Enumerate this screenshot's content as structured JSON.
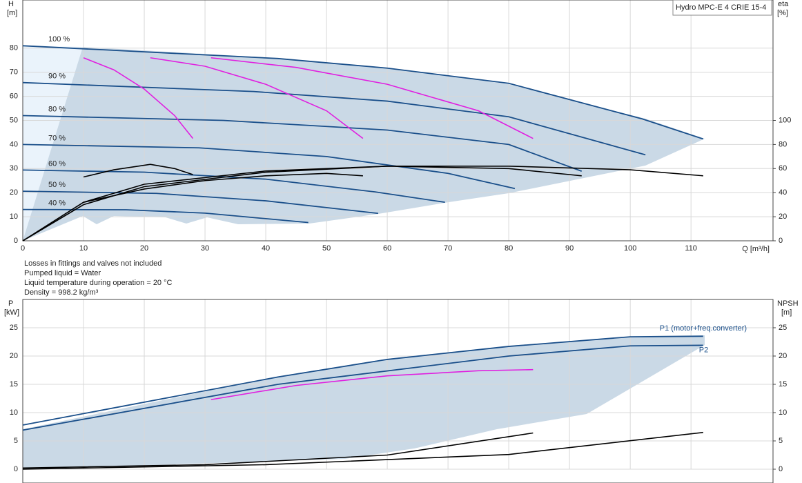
{
  "chart_data": [
    {
      "type": "line",
      "title": "Hydro MPC-E 4 CRIE 15-4",
      "y_label": "H",
      "y_unit": "[m]",
      "y2_label": "eta",
      "y2_unit": "[%]",
      "x_label": "Q [m³/h]",
      "xlim": [
        0,
        123.5
      ],
      "xticks": [
        0,
        10,
        20,
        30,
        40,
        50,
        60,
        70,
        80,
        90,
        100,
        110
      ],
      "ylim": [
        0,
        100
      ],
      "yticks": [
        0,
        10,
        20,
        30,
        40,
        50,
        60,
        70,
        80
      ],
      "y2lim": [
        0,
        200
      ],
      "y2ticks": [
        0,
        20,
        40,
        60,
        80,
        100
      ],
      "grid": true,
      "series": [
        {
          "name": "100 %",
          "color": "#1a4f8a",
          "x": [
            0,
            42,
            60,
            80,
            102,
            112
          ],
          "values": [
            81,
            75.7,
            71.7,
            65.4,
            50.6,
            42.3
          ]
        },
        {
          "name": "90 %",
          "color": "#1a4f8a",
          "x": [
            0,
            38,
            60,
            80,
            102.5
          ],
          "values": [
            65.7,
            62,
            58,
            51.5,
            35.7
          ]
        },
        {
          "name": "80 %",
          "color": "#1a4f8a",
          "x": [
            0,
            33,
            60,
            80,
            92
          ],
          "values": [
            52,
            50,
            46,
            40,
            28.9
          ]
        },
        {
          "name": "70 %",
          "color": "#1a4f8a",
          "x": [
            0,
            29,
            50,
            70,
            81
          ],
          "values": [
            40,
            38.6,
            35,
            28,
            21.7
          ]
        },
        {
          "name": "60 %",
          "color": "#1a4f8a",
          "x": [
            0,
            20,
            40,
            58,
            69.5
          ],
          "values": [
            29.4,
            28.5,
            25.6,
            20.3,
            16
          ]
        },
        {
          "name": "50 %",
          "color": "#1a4f8a",
          "x": [
            0,
            22,
            40,
            58.5
          ],
          "values": [
            20.6,
            19.7,
            16.6,
            11.4
          ]
        },
        {
          "name": "40 %",
          "color": "#1a4f8a",
          "x": [
            0,
            17,
            30,
            47
          ],
          "values": [
            13,
            12.9,
            11.5,
            7.6
          ]
        },
        {
          "color": "#e020e0",
          "x": [
            10,
            15,
            20,
            25,
            28
          ],
          "values": [
            76,
            71,
            63,
            52,
            42.5
          ]
        },
        {
          "color": "#e020e0",
          "x": [
            21,
            30,
            40,
            50,
            56
          ],
          "values": [
            76,
            72.5,
            65,
            54,
            42.5
          ]
        },
        {
          "color": "#e020e0",
          "x": [
            31,
            45,
            60,
            75,
            84
          ],
          "values": [
            76,
            72,
            65,
            54,
            42.5
          ]
        },
        {
          "color": "#000000",
          "axis": "y2",
          "x": [
            0,
            10,
            20,
            40,
            60,
            80,
            100,
            112
          ],
          "values": [
            0,
            30,
            45,
            57,
            62,
            62,
            59,
            54
          ]
        },
        {
          "color": "#000000",
          "axis": "y2",
          "x": [
            0,
            10,
            20,
            40,
            60,
            80,
            92
          ],
          "values": [
            0,
            32,
            47,
            58,
            62,
            60,
            54
          ]
        },
        {
          "color": "#000000",
          "axis": "y2",
          "x": [
            10,
            20,
            30,
            40,
            50,
            56
          ],
          "values": [
            32,
            43,
            50,
            54,
            56,
            54
          ]
        },
        {
          "color": "#000000",
          "axis": "y2",
          "x": [
            10,
            15,
            21,
            25,
            28
          ],
          "values": [
            53,
            59,
            63.5,
            60,
            55
          ]
        }
      ]
    },
    {
      "type": "line",
      "y_label": "P",
      "y_unit": "[kW]",
      "y2_label": "NPSH",
      "y2_unit": "[m]",
      "xlim": [
        0,
        123.5
      ],
      "ylim": [
        0,
        30
      ],
      "yticks": [
        0,
        5,
        10,
        15,
        20,
        25
      ],
      "y2lim": [
        0,
        30
      ],
      "y2ticks": [
        0,
        5,
        10,
        15,
        20,
        25
      ],
      "grid": true,
      "series": [
        {
          "name": "P1 (motor+freq.converter)",
          "color": "#1a4f8a",
          "x": [
            0,
            42,
            60,
            80,
            100,
            112
          ],
          "values": [
            7.8,
            16.3,
            19.4,
            21.7,
            23.4,
            23.5
          ]
        },
        {
          "name": "P2",
          "color": "#1a4f8a",
          "x": [
            0,
            42,
            80,
            100,
            112
          ],
          "values": [
            6.9,
            15,
            20,
            21.8,
            21.9
          ]
        },
        {
          "color": "#e020e0",
          "x": [
            31,
            45,
            60,
            75,
            84
          ],
          "values": [
            12.3,
            14.8,
            16.5,
            17.4,
            17.6
          ]
        },
        {
          "color": "#000000",
          "axis": "y2",
          "x": [
            0,
            30,
            60,
            84
          ],
          "values": [
            0.2,
            0.8,
            2.5,
            6.4
          ]
        },
        {
          "color": "#000000",
          "axis": "y2",
          "x": [
            0,
            40,
            80,
            112
          ],
          "values": [
            0,
            0.8,
            2.6,
            6.5
          ]
        }
      ]
    }
  ],
  "notes": [
    "Losses in fittings and valves not included",
    "Pumped liquid = Water",
    "Liquid temperature during operation = 20 °C",
    "Density = 998.2 kg/m³"
  ]
}
